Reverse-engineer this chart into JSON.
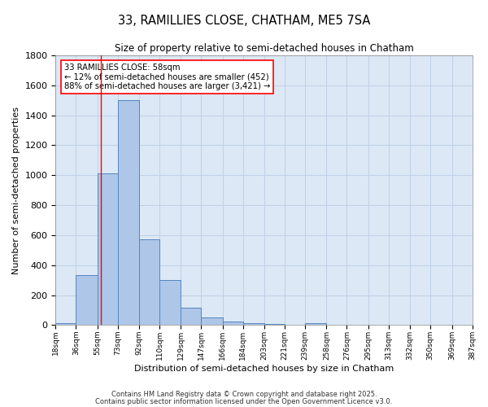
{
  "title": "33, RAMILLIES CLOSE, CHATHAM, ME5 7SA",
  "subtitle": "Size of property relative to semi-detached houses in Chatham",
  "xlabel": "Distribution of semi-detached houses by size in Chatham",
  "ylabel": "Number of semi-detached properties",
  "footnote1": "Contains HM Land Registry data © Crown copyright and database right 2025.",
  "footnote2": "Contains public sector information licensed under the Open Government Licence v3.0.",
  "annotation_title": "33 RAMILLIES CLOSE: 58sqm",
  "annotation_line1": "← 12% of semi-detached houses are smaller (452)",
  "annotation_line2": "88% of semi-detached houses are larger (3,421) →",
  "bar_edges": [
    18,
    36,
    55,
    73,
    92,
    110,
    129,
    147,
    166,
    184,
    203,
    221,
    239,
    258,
    276,
    295,
    313,
    332,
    350,
    369,
    387
  ],
  "bar_heights": [
    15,
    335,
    1010,
    1500,
    570,
    300,
    115,
    50,
    25,
    15,
    5,
    0,
    10,
    0,
    0,
    0,
    0,
    0,
    0,
    0
  ],
  "bar_color": "#aec6e8",
  "bar_edge_color": "#5585c0",
  "grid_color": "#c0d0e8",
  "bg_color": "#dce8f5",
  "red_line_x": 58,
  "ylim": [
    0,
    1800
  ],
  "yticks": [
    0,
    200,
    400,
    600,
    800,
    1000,
    1200,
    1400,
    1600,
    1800
  ]
}
